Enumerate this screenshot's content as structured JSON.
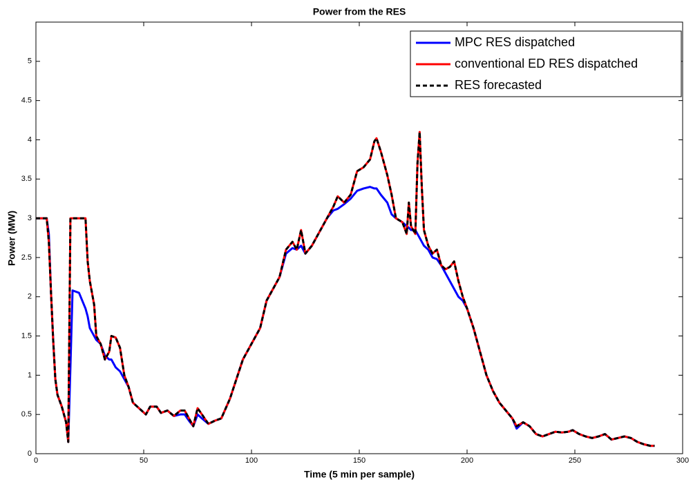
{
  "chart_data": {
    "type": "line",
    "title": "Power from the RES",
    "x_label": "Time (5 min per sample)",
    "y_label": "Power (MW)",
    "xlim": [
      0,
      300
    ],
    "xticks": [
      0,
      50,
      100,
      150,
      200,
      250,
      300
    ],
    "ylim": [
      0,
      5.5
    ],
    "yticks": [
      0,
      0.5,
      1,
      1.5,
      2,
      2.5,
      3,
      3.5,
      4,
      4.5,
      5
    ],
    "legend": "upper right",
    "x": [
      0,
      5,
      6,
      7,
      8,
      9,
      10,
      12,
      14,
      15,
      16,
      17,
      20,
      23,
      24,
      25,
      27,
      28,
      30,
      32,
      34,
      35,
      37,
      39,
      41,
      43,
      45,
      47,
      49,
      51,
      53,
      56,
      58,
      61,
      64,
      67,
      69,
      71,
      73,
      75,
      77,
      80,
      83,
      86,
      90,
      93,
      96,
      100,
      104,
      107,
      110,
      113,
      116,
      119,
      121,
      123,
      125,
      128,
      131,
      135,
      138,
      140,
      143,
      146,
      149,
      152,
      155,
      157,
      158,
      160,
      163,
      165,
      167,
      170,
      172,
      173,
      174,
      176,
      177,
      178,
      179,
      180,
      182,
      184,
      186,
      188,
      190,
      192,
      194,
      196,
      198,
      200,
      203,
      206,
      209,
      212,
      215,
      218,
      221,
      223,
      226,
      229,
      232,
      235,
      238,
      241,
      244,
      247,
      249,
      252,
      255,
      258,
      261,
      264,
      267,
      270,
      273,
      276,
      279,
      282,
      285,
      287
    ],
    "series": [
      {
        "name": "MPC RES dispatched",
        "color": "#0000ff",
        "dash": false,
        "values": [
          3.0,
          3.0,
          2.8,
          2.05,
          1.45,
          0.95,
          0.75,
          0.6,
          0.4,
          0.15,
          1.1,
          2.08,
          2.05,
          1.85,
          1.75,
          1.6,
          1.5,
          1.45,
          1.4,
          1.25,
          1.2,
          1.2,
          1.1,
          1.05,
          0.95,
          0.85,
          0.65,
          0.6,
          0.55,
          0.5,
          0.6,
          0.6,
          0.52,
          0.55,
          0.48,
          0.5,
          0.5,
          0.42,
          0.35,
          0.5,
          0.45,
          0.38,
          0.42,
          0.45,
          0.7,
          0.95,
          1.2,
          1.4,
          1.6,
          1.95,
          2.1,
          2.25,
          2.55,
          2.62,
          2.6,
          2.65,
          2.55,
          2.65,
          2.8,
          3.0,
          3.1,
          3.12,
          3.18,
          3.25,
          3.35,
          3.38,
          3.4,
          3.38,
          3.38,
          3.3,
          3.2,
          3.05,
          3.0,
          2.95,
          2.9,
          2.88,
          2.85,
          2.85,
          2.8,
          2.75,
          2.7,
          2.65,
          2.6,
          2.5,
          2.48,
          2.4,
          2.3,
          2.2,
          2.1,
          2.0,
          1.95,
          1.85,
          1.6,
          1.3,
          1.0,
          0.8,
          0.65,
          0.55,
          0.45,
          0.32,
          0.4,
          0.35,
          0.25,
          0.22,
          0.25,
          0.28,
          0.27,
          0.28,
          0.3,
          0.25,
          0.22,
          0.2,
          0.22,
          0.25,
          0.18,
          0.2,
          0.22,
          0.2,
          0.15,
          0.12,
          0.1,
          0.1
        ]
      },
      {
        "name": "conventional ED RES dispatched",
        "color": "#ff0000",
        "dash": false,
        "values": [
          3.0,
          3.0,
          2.7,
          2.05,
          1.45,
          0.95,
          0.75,
          0.6,
          0.4,
          0.15,
          3.0,
          3.0,
          3.0,
          3.0,
          2.45,
          2.2,
          1.9,
          1.5,
          1.4,
          1.2,
          1.3,
          1.5,
          1.48,
          1.35,
          1.0,
          0.85,
          0.65,
          0.6,
          0.55,
          0.5,
          0.6,
          0.6,
          0.52,
          0.55,
          0.48,
          0.55,
          0.55,
          0.45,
          0.35,
          0.58,
          0.5,
          0.38,
          0.42,
          0.45,
          0.7,
          0.95,
          1.2,
          1.4,
          1.6,
          1.95,
          2.1,
          2.25,
          2.6,
          2.7,
          2.6,
          2.85,
          2.55,
          2.65,
          2.8,
          3.0,
          3.15,
          3.28,
          3.2,
          3.3,
          3.6,
          3.65,
          3.75,
          3.98,
          4.02,
          3.85,
          3.55,
          3.3,
          3.0,
          2.95,
          2.8,
          3.2,
          2.9,
          2.8,
          3.7,
          4.1,
          3.4,
          2.85,
          2.65,
          2.55,
          2.6,
          2.4,
          2.35,
          2.38,
          2.45,
          2.2,
          2.0,
          1.85,
          1.6,
          1.3,
          1.0,
          0.8,
          0.65,
          0.55,
          0.45,
          0.35,
          0.4,
          0.35,
          0.25,
          0.22,
          0.25,
          0.28,
          0.27,
          0.28,
          0.3,
          0.25,
          0.22,
          0.2,
          0.22,
          0.25,
          0.18,
          0.2,
          0.22,
          0.2,
          0.15,
          0.12,
          0.1,
          0.1
        ]
      },
      {
        "name": "RES forecasted",
        "color": "#000000",
        "dash": true,
        "values": [
          3.0,
          3.0,
          2.7,
          2.05,
          1.45,
          0.95,
          0.75,
          0.6,
          0.4,
          0.15,
          3.0,
          3.0,
          3.0,
          3.0,
          2.45,
          2.2,
          1.9,
          1.5,
          1.4,
          1.2,
          1.3,
          1.5,
          1.48,
          1.35,
          1.0,
          0.85,
          0.65,
          0.6,
          0.55,
          0.5,
          0.6,
          0.6,
          0.52,
          0.55,
          0.48,
          0.55,
          0.55,
          0.45,
          0.35,
          0.58,
          0.5,
          0.38,
          0.42,
          0.45,
          0.7,
          0.95,
          1.2,
          1.4,
          1.6,
          1.95,
          2.1,
          2.25,
          2.6,
          2.7,
          2.6,
          2.85,
          2.55,
          2.65,
          2.8,
          3.0,
          3.15,
          3.28,
          3.2,
          3.3,
          3.6,
          3.65,
          3.75,
          3.98,
          4.02,
          3.85,
          3.55,
          3.3,
          3.0,
          2.95,
          2.8,
          3.2,
          2.9,
          2.8,
          3.7,
          4.1,
          3.4,
          2.85,
          2.65,
          2.55,
          2.6,
          2.4,
          2.35,
          2.38,
          2.45,
          2.2,
          2.0,
          1.85,
          1.6,
          1.3,
          1.0,
          0.8,
          0.65,
          0.55,
          0.45,
          0.35,
          0.4,
          0.35,
          0.25,
          0.22,
          0.25,
          0.28,
          0.27,
          0.28,
          0.3,
          0.25,
          0.22,
          0.2,
          0.22,
          0.25,
          0.18,
          0.2,
          0.22,
          0.2,
          0.15,
          0.12,
          0.1,
          0.1
        ]
      }
    ]
  }
}
